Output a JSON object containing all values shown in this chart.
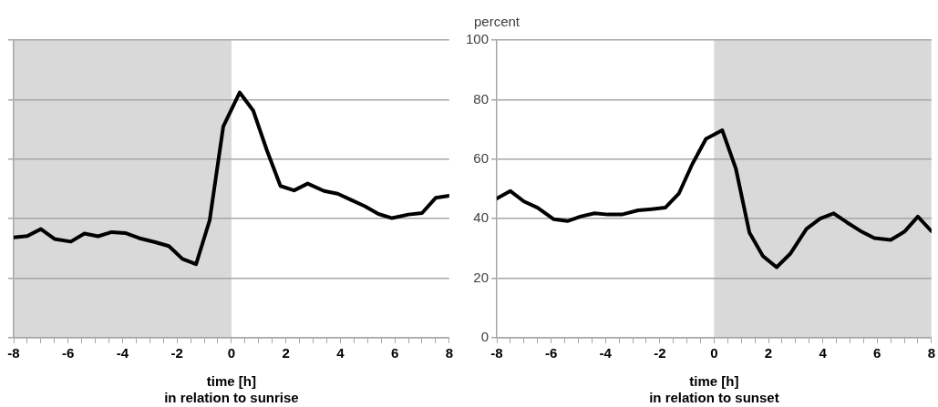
{
  "chart_data": [
    {
      "type": "line",
      "xlabel": "time [h]",
      "annotations": [
        "in relation to sunrise"
      ],
      "x": [
        -8,
        -7.5,
        -7,
        -6.5,
        -5.9,
        -5.4,
        -4.9,
        -4.4,
        -3.9,
        -3.4,
        -2.8,
        -2.3,
        -1.8,
        -1.3,
        -0.8,
        -0.3,
        0.3,
        0.8,
        1.3,
        1.8,
        2.3,
        2.8,
        3.4,
        3.9,
        4.4,
        4.9,
        5.4,
        5.9,
        6.5,
        7,
        7.5,
        8
      ],
      "series": [
        {
          "color": "#000000",
          "values": [
            33.7,
            34.2,
            36.5,
            33.2,
            32.3,
            35,
            34.1,
            35.5,
            35.2,
            33.5,
            32.1,
            30.8,
            26.5,
            24.7,
            39.5,
            71,
            82.4,
            76.3,
            63,
            51,
            49.5,
            51.8,
            49.3,
            48.4,
            46.3,
            44.2,
            41.6,
            40.2,
            41.4,
            41.9,
            47,
            47.7
          ]
        }
      ],
      "xlim": [
        -8,
        8
      ],
      "xticks": [
        -8,
        {
          "value": -7.5,
          "label": null
        },
        {
          "value": -7,
          "label": null
        },
        {
          "value": -6.5,
          "label": null
        },
        -6,
        {
          "value": -5.5,
          "label": null
        },
        {
          "value": -5,
          "label": null
        },
        {
          "value": -4.5,
          "label": null
        },
        -4,
        {
          "value": -3.5,
          "label": null
        },
        {
          "value": -3,
          "label": null
        },
        {
          "value": -2.5,
          "label": null
        },
        -2,
        {
          "value": -1.5,
          "label": null
        },
        {
          "value": -1,
          "label": null
        },
        {
          "value": -0.5,
          "label": null
        },
        0,
        {
          "value": 0.5,
          "label": null
        },
        {
          "value": 1,
          "label": null
        },
        {
          "value": 1.5,
          "label": null
        },
        2,
        {
          "value": 2.5,
          "label": null
        },
        {
          "value": 3,
          "label": null
        },
        {
          "value": 3.5,
          "label": null
        },
        4,
        {
          "value": 4.5,
          "label": null
        },
        {
          "value": 5,
          "label": null
        },
        {
          "value": 5.5,
          "label": null
        },
        6,
        {
          "value": 6.5,
          "label": null
        },
        {
          "value": 7,
          "label": null
        },
        {
          "value": 7.5,
          "label": null
        },
        8
      ],
      "ylim": [
        0,
        100
      ],
      "yticks": [
        0,
        20,
        40,
        60,
        80,
        100
      ],
      "tick_labels": "x",
      "bands": [
        {
          "axis": "x",
          "from": -8,
          "to": 0,
          "color": "#d9d9d9"
        }
      ],
      "grid": "y",
      "legend": false,
      "marker": "none",
      "line_style": "solid"
    },
    {
      "type": "line",
      "xlabel": "time [h]",
      "ylabel": "percent",
      "annotations": [
        "in relation to sunset"
      ],
      "x": [
        -8,
        -7.5,
        -7,
        -6.5,
        -5.9,
        -5.4,
        -4.9,
        -4.4,
        -3.9,
        -3.4,
        -2.8,
        -2.3,
        -1.8,
        -1.3,
        -0.8,
        -0.3,
        0.3,
        0.8,
        1.3,
        1.8,
        2.3,
        2.8,
        3.4,
        3.9,
        4.4,
        4.9,
        5.4,
        5.9,
        6.5,
        7,
        7.5,
        8
      ],
      "series": [
        {
          "color": "#000000",
          "values": [
            46.8,
            49.3,
            45.8,
            43.7,
            39.8,
            39.2,
            40.8,
            41.8,
            41.4,
            41.4,
            42.8,
            43.2,
            43.7,
            48.4,
            58.4,
            66.8,
            69.7,
            56.8,
            35.3,
            27.4,
            23.7,
            28.2,
            36.6,
            40,
            41.8,
            38.7,
            35.8,
            33.5,
            32.9,
            35.6,
            40.7,
            35.8
          ]
        }
      ],
      "xlim": [
        -8,
        8
      ],
      "xticks": [
        -8,
        {
          "value": -7.5,
          "label": null
        },
        {
          "value": -7,
          "label": null
        },
        {
          "value": -6.5,
          "label": null
        },
        -6,
        {
          "value": -5.5,
          "label": null
        },
        {
          "value": -5,
          "label": null
        },
        {
          "value": -4.5,
          "label": null
        },
        -4,
        {
          "value": -3.5,
          "label": null
        },
        {
          "value": -3,
          "label": null
        },
        {
          "value": -2.5,
          "label": null
        },
        -2,
        {
          "value": -1.5,
          "label": null
        },
        {
          "value": -1,
          "label": null
        },
        {
          "value": -0.5,
          "label": null
        },
        0,
        {
          "value": 0.5,
          "label": null
        },
        {
          "value": 1,
          "label": null
        },
        {
          "value": 1.5,
          "label": null
        },
        2,
        {
          "value": 2.5,
          "label": null
        },
        {
          "value": 3,
          "label": null
        },
        {
          "value": 3.5,
          "label": null
        },
        4,
        {
          "value": 4.5,
          "label": null
        },
        {
          "value": 5,
          "label": null
        },
        {
          "value": 5.5,
          "label": null
        },
        6,
        {
          "value": 6.5,
          "label": null
        },
        {
          "value": 7,
          "label": null
        },
        {
          "value": 7.5,
          "label": null
        },
        8
      ],
      "ylim": [
        0,
        100
      ],
      "yticks": [
        0,
        20,
        40,
        60,
        80,
        100
      ],
      "bands": [
        {
          "axis": "x",
          "from": 0,
          "to": 8,
          "color": "#d9d9d9"
        }
      ],
      "grid": "y",
      "legend": false,
      "marker": "none",
      "line_style": "solid"
    }
  ]
}
